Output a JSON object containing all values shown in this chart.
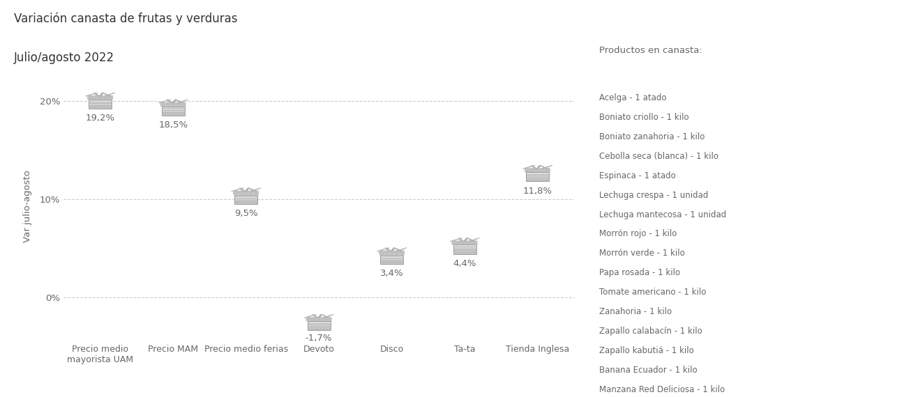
{
  "title_line1": "Variación canasta de frutas y verduras",
  "title_line2": "Julio/agosto 2022",
  "categories": [
    "Precio medio\nmayorista UAM",
    "Precio MAM",
    "Precio medio ferias",
    "Devoto",
    "Disco",
    "Ta-ta",
    "Tienda Inglesa"
  ],
  "values": [
    19.2,
    18.5,
    9.5,
    -1.7,
    3.4,
    4.4,
    11.8
  ],
  "value_labels": [
    "19,2%",
    "18,5%",
    "9,5%",
    "-1,7%",
    "3,4%",
    "4,4%",
    "11,8%"
  ],
  "ylabel": "Var julio-agosto",
  "ylim": [
    -4.5,
    23
  ],
  "background_color": "#ffffff",
  "grid_color": "#cccccc",
  "text_color": "#666666",
  "title_color": "#333333",
  "legend_title": "Productos en canasta:",
  "legend_items": [
    "Acelga - 1 atado",
    "Boniato criollo - 1 kilo",
    "Boniato zanahoria - 1 kilo",
    "Cebolla seca (blanca) - 1 kilo",
    "Espinaca - 1 atado",
    "Lechuga crespa - 1 unidad",
    "Lechuga mantecosa - 1 unidad",
    "Morrón rojo - 1 kilo",
    "Morrón verde - 1 kilo",
    "Papa rosada - 1 kilo",
    "Tomate americano - 1 kilo",
    "Zanahoria - 1 kilo",
    "Zapallo calabacín - 1 kilo",
    "Zapallo kabutiá - 1 kilo",
    "Banana Ecuador - 1 kilo",
    "Manzana Red Deliciosa - 1 kilo"
  ]
}
